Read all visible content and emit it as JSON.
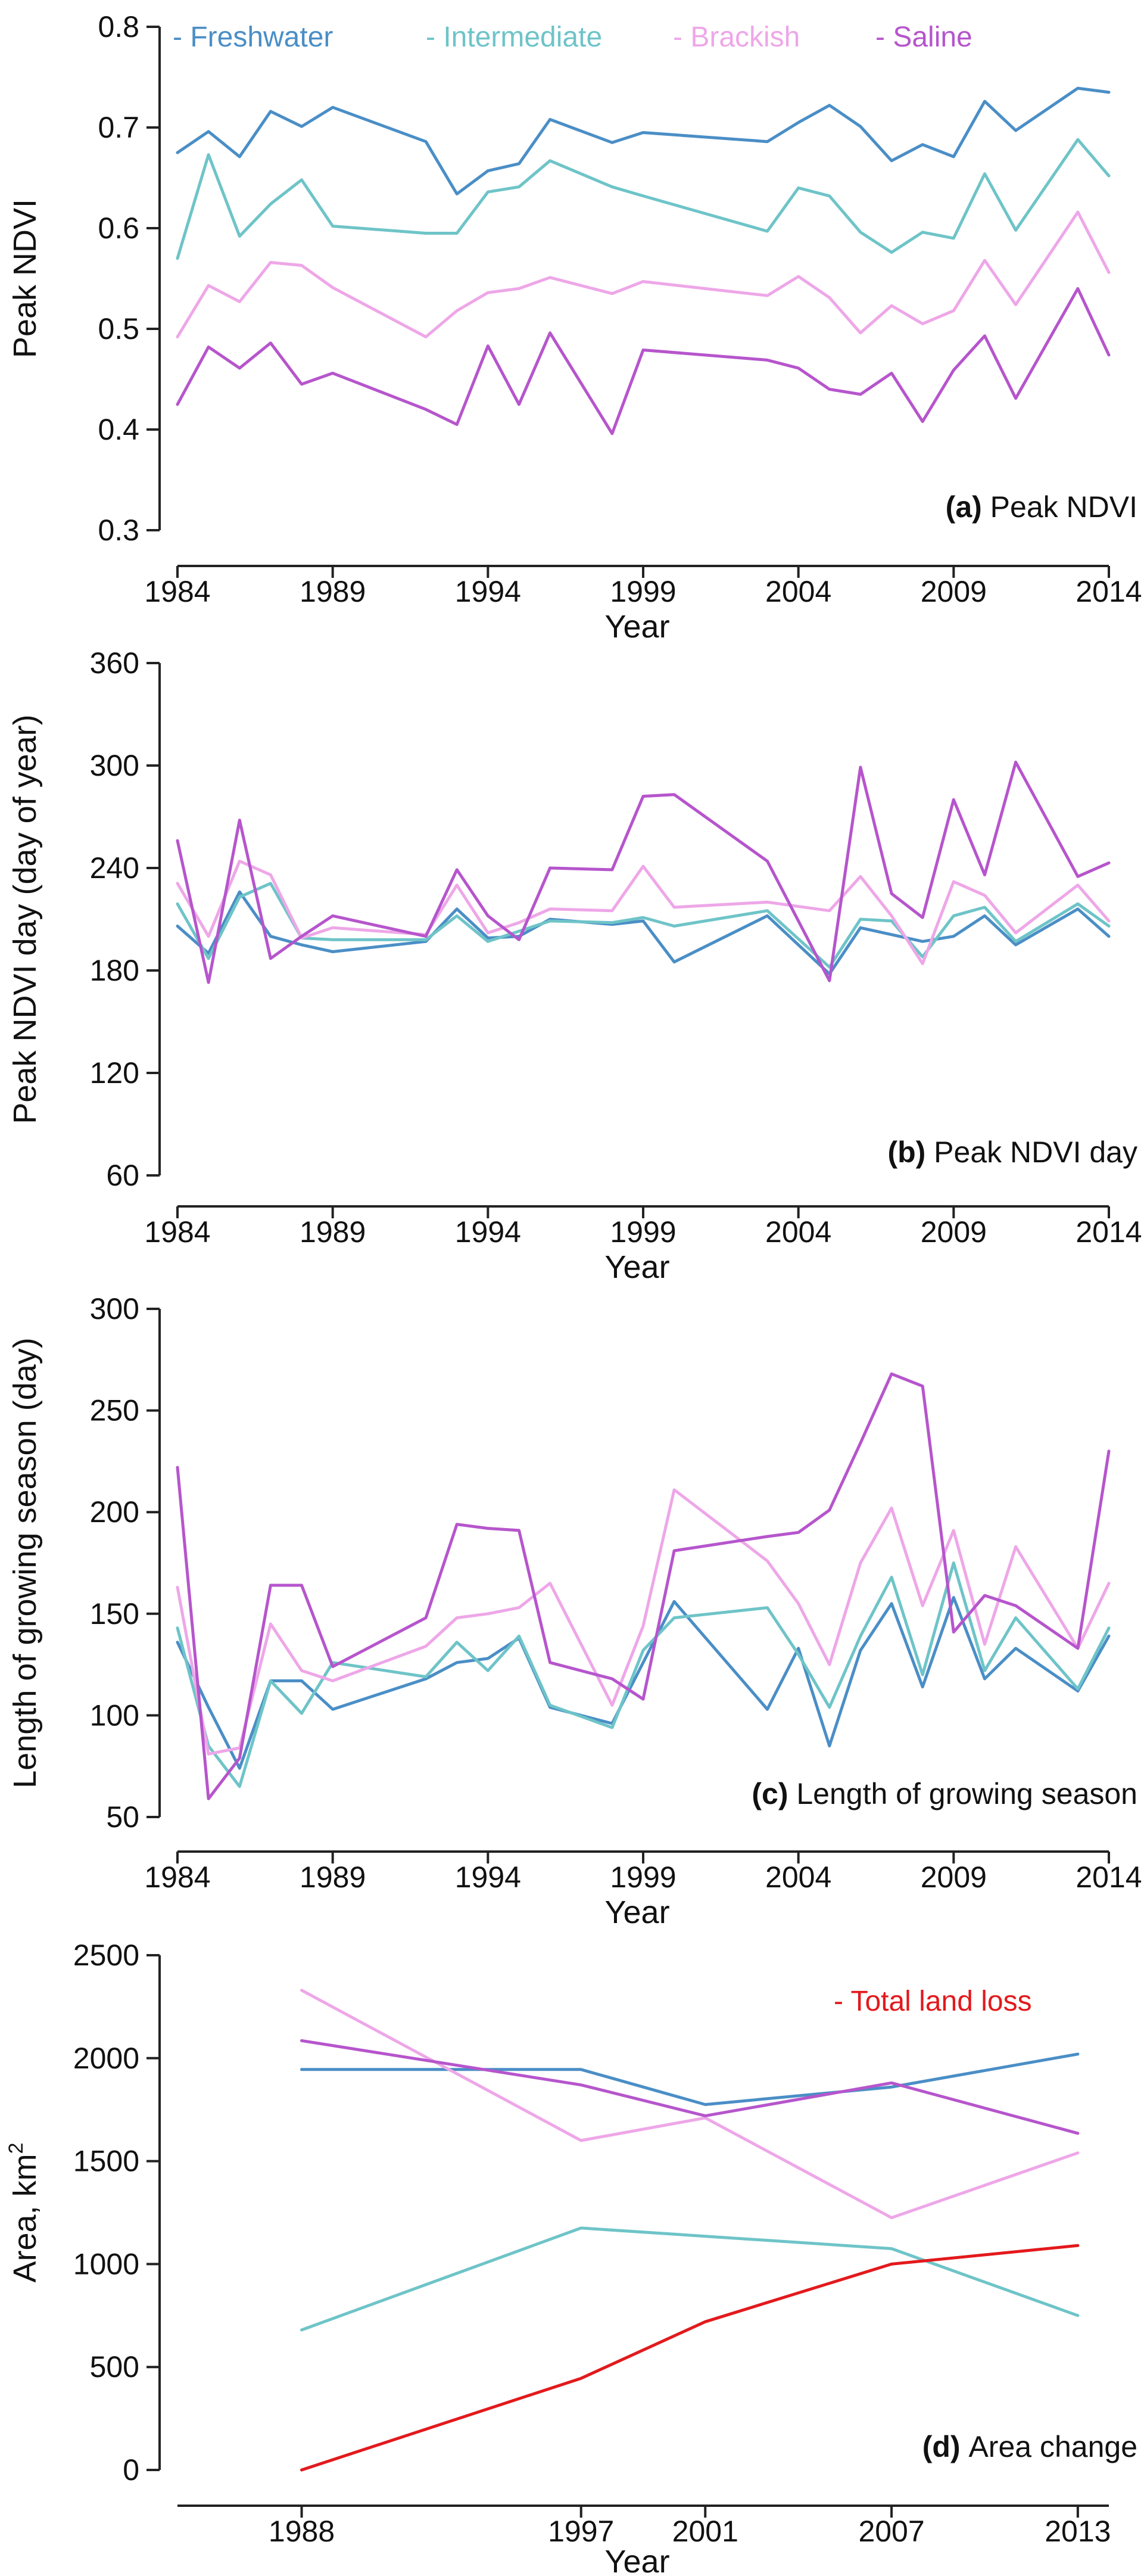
{
  "colors": {
    "Freshwater": "#4a8ec6",
    "Intermediate": "#6ec4c8",
    "Brackish": "#eea7e8",
    "Saline": "#b655cc",
    "Total land loss": "#e3191c"
  },
  "legend": [
    {
      "marker": "-",
      "label": "Freshwater",
      "color_key": "Freshwater"
    },
    {
      "marker": "-",
      "label": "Intermediate",
      "color_key": "Intermediate"
    },
    {
      "marker": "-",
      "label": "Brackish",
      "color_key": "Brackish"
    },
    {
      "marker": "-",
      "label": "Saline",
      "color_key": "Saline"
    }
  ],
  "chart_data": [
    {
      "type": "line",
      "panel_letter": "(a)",
      "panel_title": "Peak NDVI",
      "xlabel": "Year",
      "ylabel": "Peak NDVI",
      "xlim": [
        1984,
        2014
      ],
      "ylim": [
        0.3,
        0.8
      ],
      "xticks": [
        1984,
        1989,
        1994,
        1999,
        2004,
        2009,
        2014
      ],
      "yticks": [
        "0.3",
        "0.4",
        "0.5",
        "0.6",
        "0.7",
        "0.8"
      ],
      "grid": false,
      "legend_position": "top",
      "x": [
        1984,
        1985,
        1986,
        1987,
        1988,
        1989,
        1992,
        1993,
        1994,
        1995,
        1996,
        1998,
        1999,
        2003,
        2004,
        2005,
        2006,
        2007,
        2008,
        2009,
        2010,
        2011,
        2013,
        2014
      ],
      "series": [
        {
          "name": "Freshwater",
          "values": [
            0.675,
            0.696,
            0.671,
            0.716,
            0.701,
            0.72,
            0.686,
            0.634,
            0.657,
            0.664,
            0.708,
            0.685,
            0.695,
            0.686,
            0.705,
            0.722,
            0.701,
            0.667,
            0.683,
            0.671,
            0.726,
            0.697,
            0.739,
            0.735
          ]
        },
        {
          "name": "Intermediate",
          "values": [
            0.57,
            0.673,
            0.592,
            0.624,
            0.648,
            0.602,
            0.595,
            0.595,
            0.636,
            0.641,
            0.667,
            0.641,
            0.632,
            0.597,
            0.64,
            0.632,
            0.596,
            0.576,
            0.596,
            0.59,
            0.654,
            0.598,
            0.688,
            0.652
          ]
        },
        {
          "name": "Brackish",
          "values": [
            0.492,
            0.543,
            0.527,
            0.566,
            0.563,
            0.541,
            0.492,
            0.518,
            0.536,
            0.54,
            0.551,
            0.535,
            0.547,
            0.533,
            0.552,
            0.531,
            0.496,
            0.523,
            0.505,
            0.518,
            0.568,
            0.524,
            0.616,
            0.556
          ]
        },
        {
          "name": "Saline",
          "values": [
            0.425,
            0.482,
            0.461,
            0.486,
            0.445,
            0.456,
            0.42,
            0.405,
            0.483,
            0.425,
            0.496,
            0.396,
            0.479,
            0.469,
            0.461,
            0.44,
            0.435,
            0.456,
            0.408,
            0.459,
            0.493,
            0.431,
            0.54,
            0.474
          ]
        }
      ]
    },
    {
      "type": "line",
      "panel_letter": "(b)",
      "panel_title": "Peak NDVI day",
      "xlabel": "Year",
      "ylabel": "Peak NDVI day (day of year)",
      "xlim": [
        1984,
        2014
      ],
      "ylim": [
        60,
        360
      ],
      "xticks": [
        1984,
        1989,
        1994,
        1999,
        2004,
        2009,
        2014
      ],
      "yticks": [
        "60",
        "120",
        "180",
        "240",
        "300",
        "360"
      ],
      "grid": false,
      "x": [
        1984,
        1985,
        1986,
        1987,
        1988,
        1989,
        1992,
        1993,
        1994,
        1995,
        1996,
        1998,
        1999,
        2000,
        2003,
        2005,
        2006,
        2007,
        2008,
        2009,
        2010,
        2011,
        2013,
        2014
      ],
      "series": [
        {
          "name": "Freshwater",
          "values": [
            206,
            190,
            226,
            200,
            195,
            191,
            197,
            216,
            199,
            200,
            210,
            207,
            209,
            185,
            212,
            178,
            205,
            201,
            197,
            200,
            212,
            195,
            216,
            200
          ]
        },
        {
          "name": "Intermediate",
          "values": [
            219,
            187,
            223,
            231,
            199,
            198,
            198,
            212,
            197,
            203,
            209,
            208,
            211,
            206,
            215,
            182,
            210,
            209,
            188,
            212,
            217,
            197,
            219,
            206
          ]
        },
        {
          "name": "Brackish",
          "values": [
            231,
            200,
            244,
            236,
            199,
            205,
            201,
            230,
            202,
            208,
            216,
            215,
            241,
            217,
            220,
            215,
            235,
            212,
            184,
            232,
            224,
            202,
            230,
            209
          ]
        },
        {
          "name": "Saline",
          "values": [
            256,
            173,
            268,
            187,
            200,
            212,
            200,
            239,
            212,
            198,
            240,
            239,
            282,
            283,
            244,
            174,
            299,
            225,
            211,
            280,
            236,
            302,
            235,
            243
          ]
        }
      ]
    },
    {
      "type": "line",
      "panel_letter": "(c)",
      "panel_title": "Length of growing season",
      "xlabel": "Year",
      "ylabel": "Length of growing season (day)",
      "xlim": [
        1984,
        2014
      ],
      "ylim": [
        50,
        300
      ],
      "xticks": [
        1984,
        1989,
        1994,
        1999,
        2004,
        2009,
        2014
      ],
      "yticks": [
        "50",
        "100",
        "150",
        "200",
        "250",
        "300"
      ],
      "grid": false,
      "x": [
        1984,
        1985,
        1986,
        1987,
        1988,
        1989,
        1992,
        1993,
        1994,
        1995,
        1996,
        1998,
        1999,
        2000,
        2003,
        2004,
        2005,
        2006,
        2007,
        2008,
        2009,
        2010,
        2011,
        2013,
        2014
      ],
      "series": [
        {
          "name": "Freshwater",
          "values": [
            136,
            104,
            74,
            117,
            117,
            103,
            118,
            126,
            128,
            138,
            104,
            96,
            126,
            156,
            103,
            133,
            85,
            132,
            155,
            114,
            158,
            118,
            133,
            112,
            139
          ]
        },
        {
          "name": "Intermediate",
          "values": [
            143,
            85,
            65,
            117,
            101,
            126,
            119,
            136,
            122,
            139,
            105,
            94,
            132,
            148,
            153,
            130,
            104,
            139,
            168,
            120,
            175,
            122,
            148,
            113,
            143
          ]
        },
        {
          "name": "Brackish",
          "values": [
            163,
            81,
            84,
            145,
            122,
            117,
            134,
            148,
            150,
            153,
            165,
            105,
            144,
            211,
            176,
            155,
            125,
            175,
            202,
            154,
            191,
            135,
            183,
            133,
            165
          ]
        },
        {
          "name": "Saline",
          "values": [
            222,
            59,
            79,
            164,
            164,
            124,
            148,
            194,
            192,
            191,
            126,
            118,
            108,
            181,
            188,
            190,
            201,
            234,
            268,
            262,
            141,
            159,
            154,
            133,
            230
          ]
        }
      ]
    },
    {
      "type": "line",
      "panel_letter": "(d)",
      "panel_title": "Area change",
      "xlabel": "Year",
      "ylabel": "Area, km",
      "ylabel_sup": "2",
      "xlim": [
        1984,
        2014
      ],
      "ylim": [
        0,
        2500
      ],
      "xticks": [
        1988,
        1997,
        2001,
        2007,
        2013
      ],
      "yticks": [
        "0",
        "500",
        "1000",
        "1500",
        "2000",
        "2500"
      ],
      "grid": false,
      "legend": [
        {
          "marker": "-",
          "label": "Total land loss",
          "color_key": "Total land loss"
        }
      ],
      "x": [
        1988,
        1997,
        2001,
        2007,
        2013
      ],
      "series": [
        {
          "name": "Freshwater",
          "values": [
            1945,
            1945,
            1775,
            1860,
            2020
          ]
        },
        {
          "name": "Intermediate",
          "values": [
            680,
            1175,
            1135,
            1075,
            750
          ]
        },
        {
          "name": "Brackish",
          "values": [
            2330,
            1600,
            1710,
            1225,
            1540
          ]
        },
        {
          "name": "Saline",
          "values": [
            2085,
            1870,
            1720,
            1880,
            1635
          ]
        },
        {
          "name": "Total land loss",
          "values": [
            0,
            445,
            720,
            1000,
            1090
          ]
        }
      ]
    }
  ]
}
